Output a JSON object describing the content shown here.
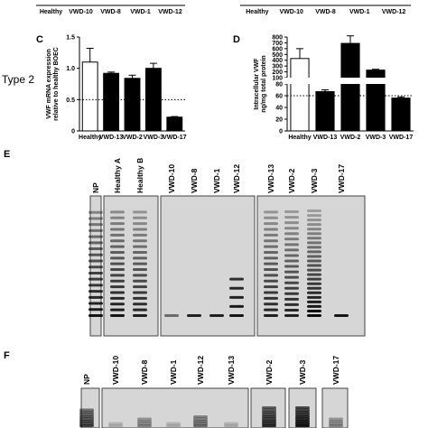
{
  "top_row": [
    {
      "categories": [
        "Healthy",
        "VWD-10",
        "VWD-8",
        "VWD-1",
        "VWD-12"
      ]
    },
    {
      "categories": [
        "Healthy",
        "VWD-10",
        "VWD-8",
        "VWD-1",
        "VWD-12"
      ]
    }
  ],
  "row_label": "Type 2",
  "chart_data": [
    {
      "type": "bar",
      "panel_label": "C",
      "ylabel": [
        "VWF mRNA expression",
        "relative to healthy BOEC"
      ],
      "categories": [
        "Healthy",
        "VWD-13",
        "VWD-2",
        "VWD-3",
        "VWD-17"
      ],
      "values": [
        1.1,
        0.92,
        0.84,
        1.0,
        0.22
      ],
      "errors": [
        0.22,
        0.02,
        0.05,
        0.08,
        0.01
      ],
      "colors": [
        "#ffffff",
        "#000000",
        "#000000",
        "#000000",
        "#000000"
      ],
      "ylim": [
        0,
        1.5
      ],
      "yticks": [
        0,
        0.5,
        {
          "value": 1,
          "label": "1.0"
        },
        1.5
      ],
      "reference_line": 0.5
    },
    {
      "type": "bar",
      "panel_label": "D",
      "ylabel": [
        "Intracellular VWF",
        "ng/mg total protein"
      ],
      "categories": [
        "Healthy",
        "VWD-13",
        "VWD-2",
        "VWD-3",
        "VWD-17"
      ],
      "values": [
        430,
        67,
        690,
        230,
        56
      ],
      "errors": [
        170,
        3,
        130,
        15,
        2
      ],
      "colors": [
        "#ffffff",
        "#000000",
        "#000000",
        "#000000",
        "#000000"
      ],
      "ylim": [
        0,
        800
      ],
      "ybreak": [
        80,
        100
      ],
      "yticks": [
        0,
        20,
        40,
        60,
        80,
        100,
        200,
        300,
        400,
        500,
        600,
        700,
        800
      ],
      "reference_line": 60
    }
  ],
  "gel_e": {
    "panel_label": "E",
    "lanes": [
      "NP",
      "Healthy A",
      "Healthy B",
      "VWD-10",
      "VWD-8",
      "VWD-1",
      "VWD-12",
      "VWD-13",
      "VWD-2",
      "VWD-3",
      "VWD-17"
    ]
  },
  "gel_f": {
    "panel_label": "F",
    "lanes": [
      "NP",
      "VWD-10",
      "VWD-8",
      "VWD-1",
      "VWD-12",
      "VWD-13",
      "VWD-2",
      "VWD-3",
      "VWD-17"
    ]
  }
}
